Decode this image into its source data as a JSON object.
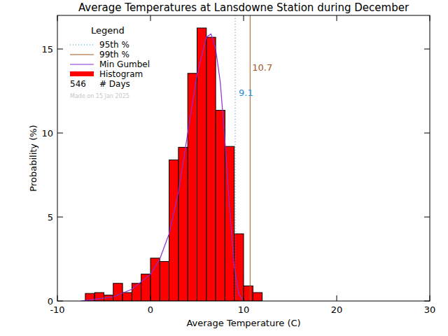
{
  "chart_data": {
    "type": "histogram",
    "title": "Average Temperatures at Lansdowne Station during December",
    "x_label": "Average Temperature (C)",
    "y_label": "Probability (%)",
    "xlim": [
      -10,
      30
    ],
    "xticks": [
      -10,
      0,
      10,
      20,
      30
    ],
    "ylim": [
      0,
      17
    ],
    "yticks": [
      0,
      5,
      10,
      15
    ],
    "legend": "top-left",
    "legend_title": "Legend",
    "days": 546,
    "days_label": "# Days",
    "annotations": [
      "Made on 15 Jan 2025"
    ],
    "series": [
      {
        "name": "95th %",
        "type": "vline",
        "color": "#2a8fd0",
        "line_style": "dotted",
        "values": [
          9.1
        ]
      },
      {
        "name": "99th %",
        "type": "vline",
        "color": "#a5571e",
        "line_style": "solid",
        "values": [
          10.7
        ]
      },
      {
        "name": "Min Gumbel",
        "type": "line",
        "color": "#8a2fd6",
        "line_style": "solid",
        "x": [
          -7.5,
          -6,
          -4,
          -2,
          0,
          1,
          2,
          3,
          4,
          5,
          6,
          6.5,
          7,
          7.5,
          8,
          8.5,
          9,
          9.5,
          10
        ],
        "values": [
          0.0,
          0.1,
          0.25,
          0.7,
          1.6,
          2.5,
          4.0,
          6.5,
          10.0,
          13.5,
          15.7,
          15.9,
          15.0,
          13.0,
          9.5,
          5.5,
          2.0,
          0.4,
          0.0
        ]
      },
      {
        "name": "Histogram",
        "type": "histogram",
        "color": "#ff0000",
        "bins": [
          -7,
          -6,
          -5,
          -4,
          -3,
          -2,
          -1,
          0,
          1,
          2,
          3,
          4,
          5,
          6,
          7,
          8,
          9,
          10,
          11,
          12
        ],
        "values": [
          0.45,
          0.5,
          0.35,
          1.05,
          0.5,
          1.05,
          1.6,
          2.55,
          2.35,
          8.4,
          9.15,
          13.55,
          16.25,
          15.7,
          11.35,
          9.2,
          4.0,
          0.9,
          0.5
        ]
      }
    ]
  }
}
